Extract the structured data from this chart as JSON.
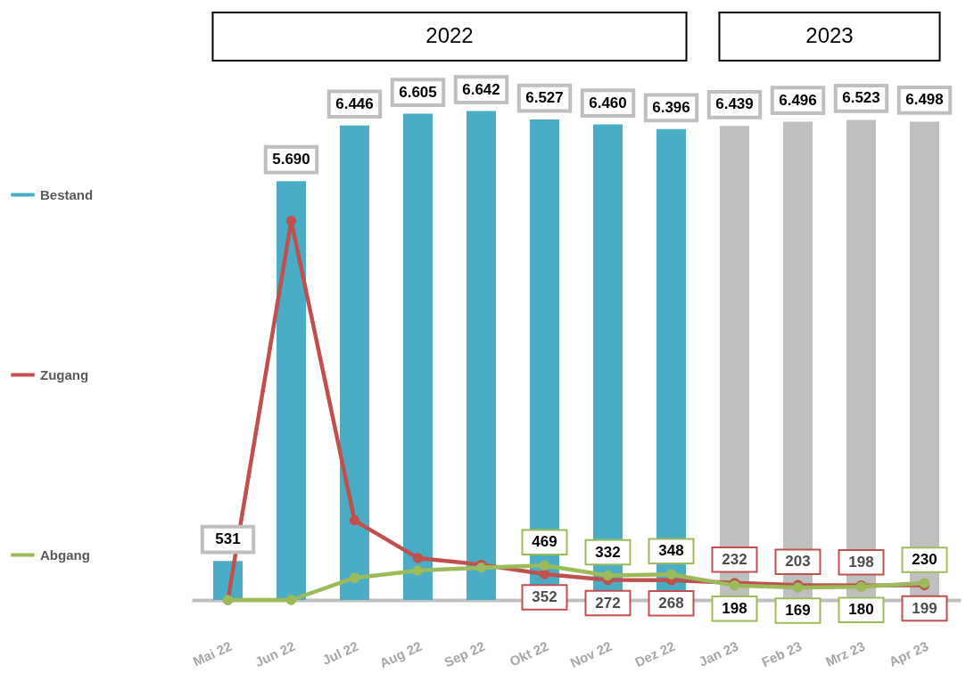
{
  "chart_data": {
    "type": "bar",
    "annotations": [
      "2022",
      "2023"
    ],
    "categories": [
      "Mai 22",
      "Jun 22",
      "Jul 22",
      "Aug 22",
      "Sep 22",
      "Okt 22",
      "Nov 22",
      "Dez 22",
      "Jan 23",
      "Feb 23",
      "Mrz 23",
      "Apr 23"
    ],
    "series": [
      {
        "name": "Bestand",
        "type": "bar",
        "color": "#4bacc6",
        "colors": [
          "#4bacc6",
          "#4bacc6",
          "#4bacc6",
          "#4bacc6",
          "#4bacc6",
          "#4bacc6",
          "#4bacc6",
          "#4bacc6",
          "#bfbfbf",
          "#bfbfbf",
          "#bfbfbf",
          "#bfbfbf"
        ],
        "values": [
          531,
          5690,
          6446,
          6605,
          6642,
          6527,
          6460,
          6396,
          6439,
          6496,
          6523,
          6498
        ],
        "value_labels": [
          "531",
          "5.690",
          "6.446",
          "6.605",
          "6.642",
          "6.527",
          "6.460",
          "6.396",
          "6.439",
          "6.496",
          "6.523",
          "6.498"
        ]
      },
      {
        "name": "Zugang",
        "type": "line",
        "color": "#c0504d",
        "values": [
          0,
          5150,
          1080,
          570,
          480,
          352,
          272,
          268,
          232,
          203,
          198,
          199
        ],
        "value_labels": [
          null,
          null,
          null,
          null,
          null,
          "352",
          "272",
          "268",
          "232",
          "203",
          "198",
          "199"
        ]
      },
      {
        "name": "Abgang",
        "type": "line",
        "color": "#9bbb59",
        "values": [
          0,
          0,
          300,
          400,
          440,
          469,
          332,
          348,
          198,
          169,
          180,
          230
        ],
        "value_labels": [
          null,
          null,
          null,
          null,
          null,
          "469",
          "332",
          "348",
          "198",
          "169",
          "180",
          "230"
        ]
      }
    ],
    "ylim": [
      0,
      7000
    ],
    "tick_labels": "x",
    "legend": "left",
    "marker": "circle",
    "grid": false
  }
}
